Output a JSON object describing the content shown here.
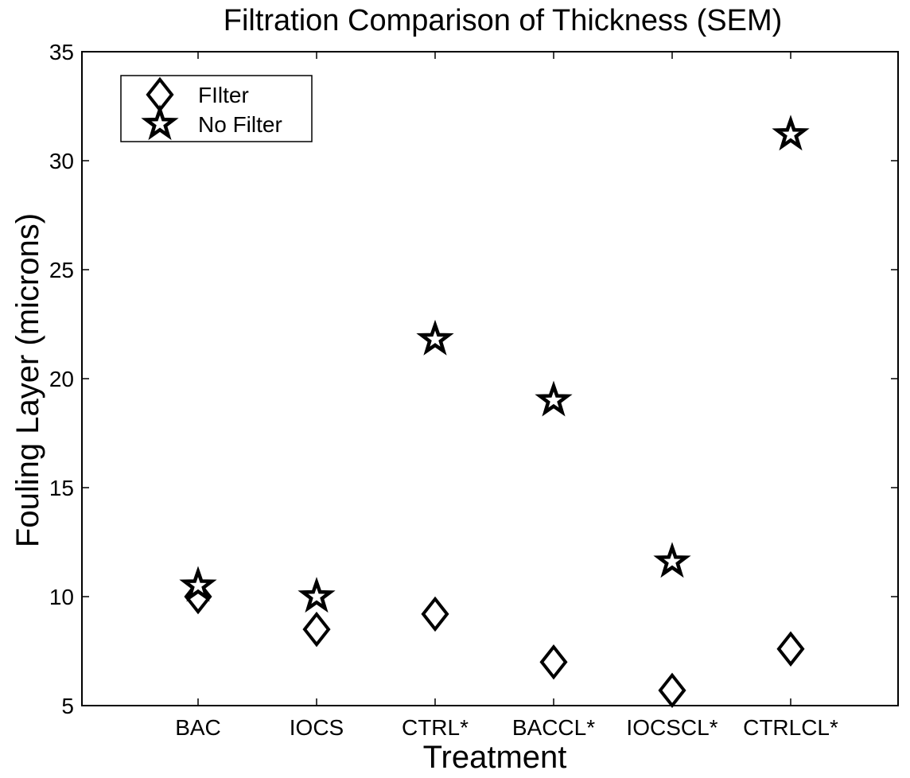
{
  "chart_data": {
    "type": "scatter",
    "title": "Filtration Comparison of Thickness (SEM)",
    "xlabel": "Treatment",
    "ylabel": "Fouling Layer (microns)",
    "categories": [
      "BAC",
      "IOCS",
      "CTRL*",
      "BACCL*",
      "IOCSCL*",
      "CTRLCL*"
    ],
    "ylim": [
      5,
      35
    ],
    "yticks": [
      5,
      10,
      15,
      20,
      25,
      30,
      35
    ],
    "grid": false,
    "legend_position": "top-left",
    "series": [
      {
        "name": "FIlter",
        "marker": "diamond",
        "values": [
          10.0,
          8.5,
          9.2,
          7.0,
          5.7,
          7.6
        ]
      },
      {
        "name": "No Filter",
        "marker": "star",
        "values": [
          10.5,
          10.0,
          21.8,
          19.0,
          11.6,
          31.2
        ]
      }
    ]
  }
}
